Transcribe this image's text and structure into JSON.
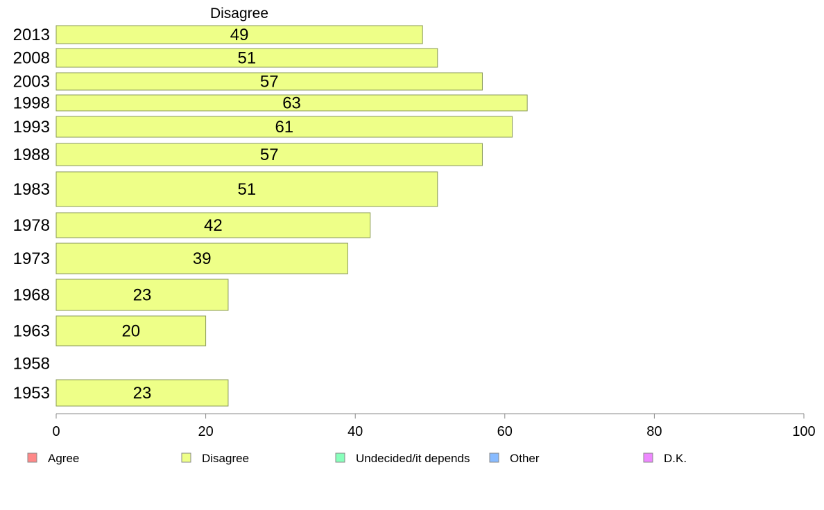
{
  "chart_data": {
    "type": "bar",
    "orientation": "horizontal",
    "title": "Disagree",
    "categories": [
      "2013",
      "2008",
      "2003",
      "1998",
      "1993",
      "1988",
      "1983",
      "1978",
      "1973",
      "1968",
      "1963",
      "1958",
      "1953"
    ],
    "series": [
      {
        "name": "Disagree",
        "values": [
          49,
          51,
          57,
          63,
          61,
          57,
          51,
          42,
          39,
          23,
          20,
          null,
          23
        ],
        "color": "#eeff88"
      }
    ],
    "xlim": [
      0,
      100
    ],
    "xticks": [
      0,
      20,
      40,
      60,
      80,
      100
    ],
    "grid": false,
    "legend": {
      "placement": "bottom",
      "items": [
        {
          "label": "Agree",
          "color": "#ff8888"
        },
        {
          "label": "Disagree",
          "color": "#eeff88"
        },
        {
          "label": "Undecided/it depends",
          "color": "#88ffbb"
        },
        {
          "label": "Other",
          "color": "#88bbff"
        },
        {
          "label": "D.K.",
          "color": "#ee88ff"
        }
      ]
    }
  }
}
